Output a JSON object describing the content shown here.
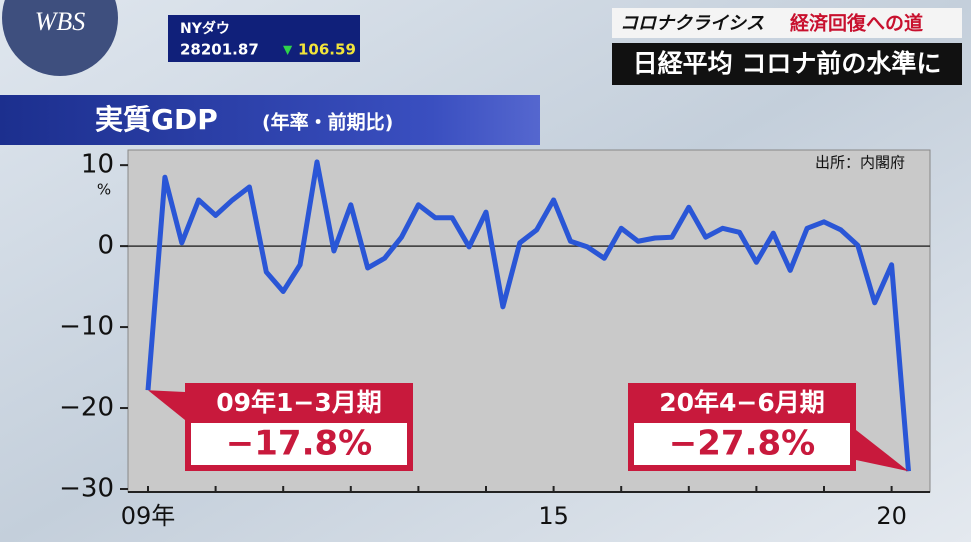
{
  "logo": "WBS",
  "ticker": {
    "name": "NYダウ",
    "price": "28201.87",
    "arrow": "▼",
    "change": "106.59"
  },
  "headline": {
    "series": "コロナクライシス",
    "subtitle": "経済回復への道",
    "title": "日経平均 コロナ前の水準に"
  },
  "chart_data": {
    "type": "line",
    "title": "実質GDP",
    "subtitle": "(年率・前期比)",
    "source": "出所：内閣府",
    "y_unit": "%",
    "categories": [
      "09年",
      null,
      null,
      null,
      null,
      null,
      null,
      null,
      null,
      null,
      null,
      null,
      null,
      null,
      null,
      null,
      null,
      null,
      null,
      null,
      null,
      null,
      null,
      null,
      "15",
      null,
      null,
      null,
      null,
      null,
      null,
      null,
      null,
      null,
      null,
      null,
      null,
      null,
      null,
      null,
      null,
      null,
      null,
      null,
      "20",
      null
    ],
    "series": [
      {
        "color": "#2a56d6",
        "values": [
          -17.8,
          8.5,
          0.4,
          5.7,
          3.8,
          5.7,
          7.3,
          -3.2,
          -5.6,
          -2.3,
          10.4,
          -0.6,
          5.1,
          -2.7,
          -1.5,
          1.1,
          5.1,
          3.5,
          3.5,
          -0.1,
          4.2,
          -7.5,
          0.4,
          2.0,
          5.7,
          0.6,
          -0.1,
          -1.5,
          2.2,
          0.6,
          1.0,
          1.1,
          4.8,
          1.1,
          2.2,
          1.7,
          -2.0,
          1.6,
          -3.0,
          2.2,
          3.0,
          2.0,
          0.1,
          -7.0,
          -2.3,
          -27.8
        ]
      }
    ],
    "ylim": [
      -30,
      11.5
    ],
    "yticks": [
      10,
      0,
      {
        "value": -10,
        "label": "−10"
      },
      {
        "value": -20,
        "label": "−20"
      },
      {
        "value": -30,
        "label": "−30"
      }
    ],
    "annotations": [
      {
        "period": "09年1−3月期",
        "label": "−17.8%"
      },
      {
        "period": "20年4−6月期",
        "label": "−27.8%"
      }
    ]
  }
}
